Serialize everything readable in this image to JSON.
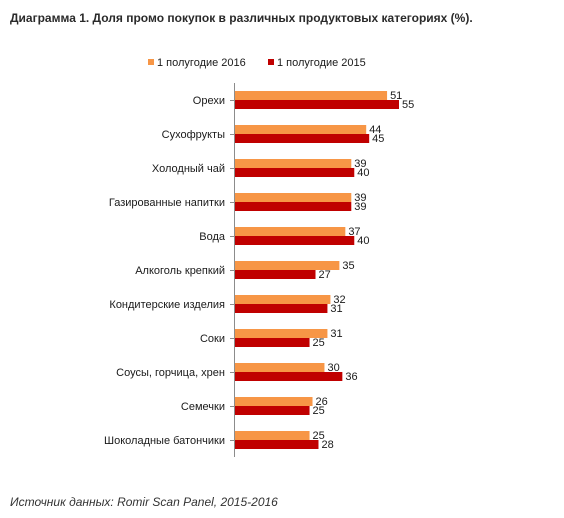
{
  "title": "Диаграмма 1. Доля промо покупок в различных продуктовых категориях (%).",
  "source": "Источник данных: Romir Scan Panel, 2015-2016",
  "chart_data": {
    "type": "bar",
    "orientation": "horizontal",
    "categories": [
      "Орехи",
      "Сухофрукты",
      "Холодный чай",
      "Газированные напитки",
      "Вода",
      "Алкоголь крепкий",
      "Кондитерские изделия",
      "Соки",
      "Соусы, горчица, хрен",
      "Семечки",
      "Шоколадные батончики"
    ],
    "series": [
      {
        "name": "1 полугодие 2016",
        "color": "#f79646",
        "values": [
          51,
          44,
          39,
          39,
          37,
          35,
          32,
          31,
          30,
          26,
          25
        ]
      },
      {
        "name": "1 полугодие 2015",
        "color": "#c00000",
        "values": [
          55,
          45,
          40,
          39,
          40,
          27,
          31,
          25,
          36,
          25,
          28
        ]
      }
    ],
    "xlim": [
      0,
      55
    ],
    "data_labels": true,
    "grid": false,
    "legend": "top"
  }
}
